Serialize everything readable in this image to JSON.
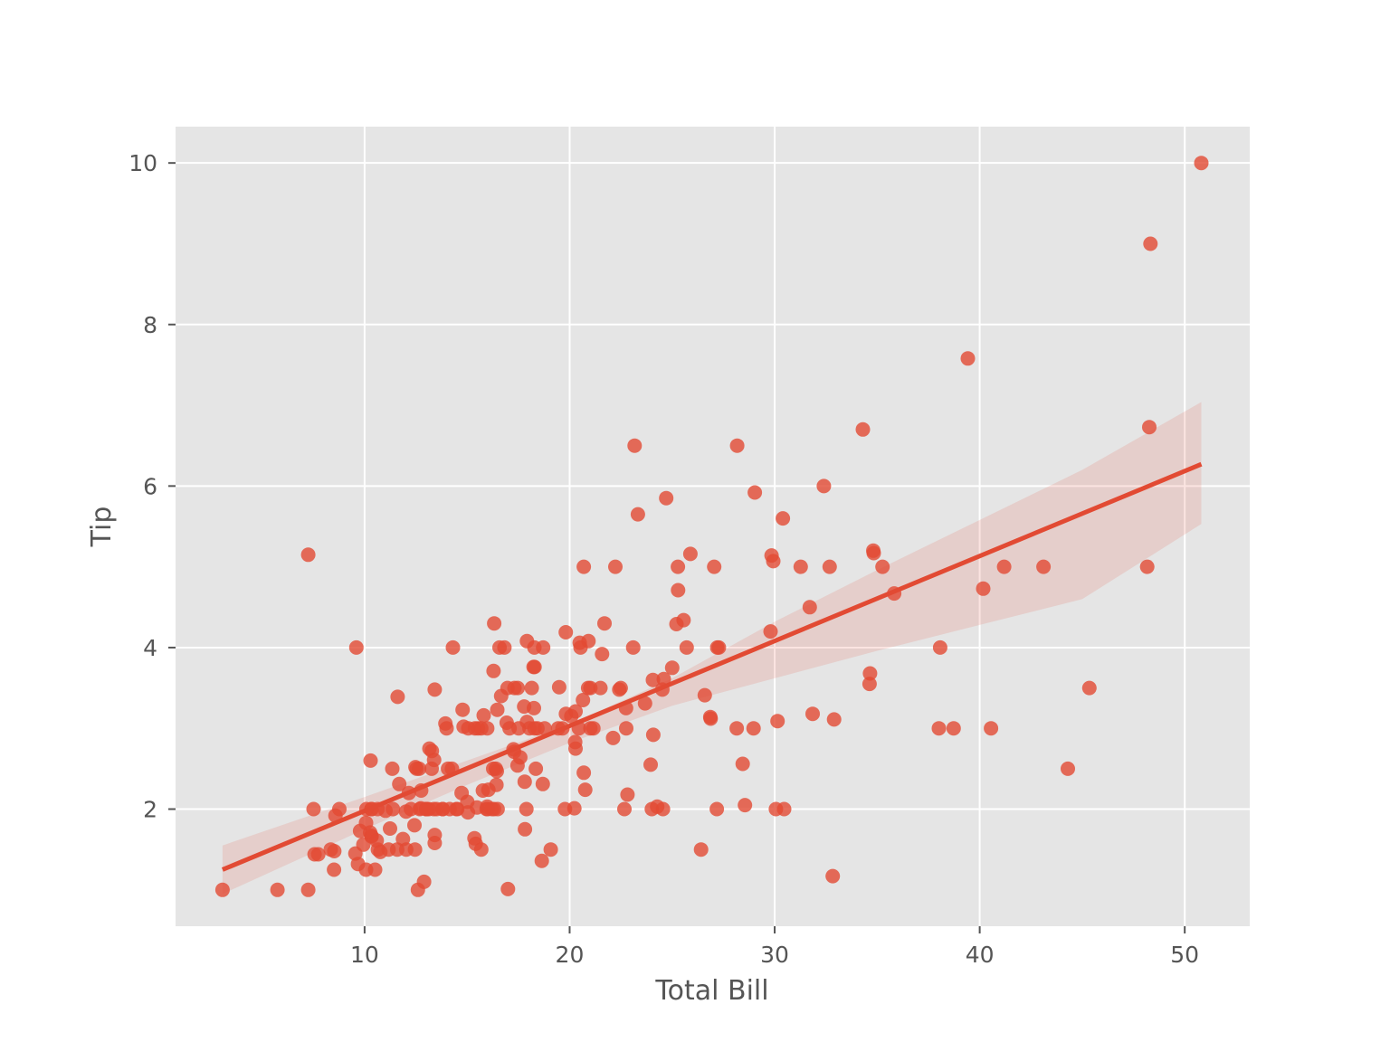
{
  "chart_data": {
    "type": "scatter",
    "title": "",
    "xlabel": "Total Bill",
    "ylabel": "Tip",
    "xlim": [
      0.78,
      53.17
    ],
    "ylim": [
      0.55,
      10.45
    ],
    "xticks": [
      10,
      20,
      30,
      40,
      50
    ],
    "yticks": [
      2,
      4,
      6,
      8,
      10
    ],
    "grid": true,
    "legend": "none",
    "colors": {
      "background": "#E5E5E5",
      "grid": "#FFFFFF",
      "marker": "#E24A33",
      "band": "#E24A33"
    },
    "series": [
      {
        "type": "scatter",
        "x": [
          16.99,
          10.34,
          21.01,
          23.68,
          24.59,
          25.29,
          8.77,
          26.88,
          15.04,
          14.78,
          10.27,
          35.26,
          15.42,
          18.43,
          14.83,
          21.58,
          10.33,
          16.29,
          16.97,
          20.65,
          17.92,
          20.29,
          15.77,
          39.42,
          19.82,
          17.81,
          13.37,
          12.69,
          21.7,
          19.65,
          9.55,
          18.35,
          15.06,
          20.69,
          17.78,
          24.06,
          16.31,
          16.93,
          18.69,
          31.27,
          16.04,
          17.46,
          13.94,
          9.68,
          30.4,
          18.29,
          22.23,
          32.4,
          28.55,
          18.04,
          12.54,
          10.29,
          34.81,
          9.94,
          25.56,
          19.49,
          38.01,
          26.41,
          11.24,
          48.27,
          20.29,
          13.81,
          11.02,
          18.29,
          17.59,
          20.08,
          16.45,
          3.07,
          20.23,
          15.01,
          12.02,
          17.07,
          26.86,
          25.28,
          14.73,
          10.51,
          17.92,
          27.2,
          22.76,
          17.29,
          19.44,
          16.66,
          10.07,
          32.68,
          15.98,
          34.83,
          13.03,
          18.28,
          24.71,
          21.16,
          28.97,
          22.49,
          5.75,
          16.32,
          22.75,
          40.17,
          27.28,
          12.03,
          21.01,
          12.46,
          11.35,
          15.38,
          44.3,
          22.42,
          20.92,
          15.36,
          20.49,
          25.21,
          18.24,
          14.31,
          14.0,
          7.25,
          38.07,
          23.95,
          25.71,
          17.31,
          29.93,
          10.65,
          12.43,
          24.08,
          11.69,
          13.42,
          14.26,
          15.95,
          12.48,
          29.8,
          8.52,
          14.52,
          11.38,
          22.82,
          19.08,
          20.27,
          11.17,
          12.26,
          18.26,
          8.51,
          10.33,
          14.15,
          16.0,
          13.16,
          17.47,
          34.3,
          41.19,
          27.05,
          16.43,
          8.35,
          18.64,
          11.87,
          9.78,
          7.51,
          14.07,
          13.13,
          17.26,
          24.55,
          19.77,
          29.85,
          48.17,
          25.0,
          13.39,
          16.49,
          21.5,
          12.66,
          16.21,
          13.81,
          17.51,
          24.52,
          20.76,
          31.71,
          10.59,
          10.63,
          50.81,
          15.81,
          7.25,
          31.85,
          16.82,
          32.9,
          17.89,
          14.48,
          9.6,
          34.63,
          34.65,
          23.33,
          45.35,
          23.17,
          40.55,
          20.69,
          20.9,
          30.46,
          18.15,
          23.1,
          15.69,
          19.81,
          28.44,
          15.48,
          16.58,
          7.56,
          10.34,
          43.11,
          13.0,
          13.51,
          18.71,
          12.74,
          13.0,
          16.4,
          20.53,
          16.47,
          26.59,
          38.73,
          24.27,
          12.76,
          30.06,
          25.89,
          48.33,
          13.27,
          28.17,
          12.9,
          28.15,
          11.59,
          7.74,
          30.14,
          12.16,
          13.42,
          8.58,
          15.98,
          13.42,
          16.27,
          10.09,
          20.45,
          13.28,
          22.12,
          24.01,
          15.69,
          11.61,
          10.77,
          15.53,
          10.07,
          12.6,
          32.83,
          35.83,
          29.03,
          27.18,
          22.67,
          17.82,
          18.78
        ],
        "y": [
          1.01,
          1.66,
          3.5,
          3.31,
          3.61,
          4.71,
          2.0,
          3.12,
          1.96,
          3.23,
          1.71,
          5.0,
          1.57,
          3.0,
          3.02,
          3.92,
          1.67,
          3.71,
          3.5,
          3.35,
          4.08,
          2.75,
          2.23,
          7.58,
          3.18,
          2.34,
          2.0,
          2.0,
          4.3,
          3.0,
          1.45,
          2.5,
          3.0,
          2.45,
          3.27,
          3.6,
          2.0,
          3.07,
          2.31,
          5.0,
          2.24,
          2.54,
          3.06,
          1.32,
          5.6,
          3.0,
          5.0,
          6.0,
          2.05,
          3.0,
          2.5,
          2.6,
          5.2,
          1.56,
          4.34,
          3.51,
          3.0,
          1.5,
          1.76,
          6.73,
          3.21,
          2.0,
          1.98,
          3.76,
          2.64,
          3.15,
          2.47,
          1.0,
          2.01,
          2.09,
          1.97,
          3.0,
          3.14,
          5.0,
          2.2,
          1.25,
          3.08,
          4.0,
          3.0,
          2.71,
          3.0,
          3.4,
          1.83,
          5.0,
          2.03,
          5.17,
          2.0,
          4.0,
          5.85,
          3.0,
          3.0,
          3.5,
          1.0,
          4.3,
          3.25,
          4.73,
          4.0,
          1.5,
          3.0,
          1.5,
          2.5,
          3.0,
          2.5,
          3.48,
          4.08,
          1.64,
          4.06,
          4.29,
          3.76,
          4.0,
          3.0,
          1.0,
          4.0,
          2.55,
          4.0,
          3.5,
          5.07,
          1.5,
          1.8,
          2.92,
          2.31,
          1.68,
          2.5,
          2.0,
          2.52,
          4.2,
          1.48,
          2.0,
          2.0,
          2.18,
          1.5,
          2.83,
          1.5,
          2.0,
          3.25,
          1.25,
          2.0,
          2.0,
          2.0,
          2.75,
          3.5,
          6.7,
          5.0,
          5.0,
          2.3,
          1.5,
          1.36,
          1.63,
          1.73,
          2.0,
          2.5,
          2.0,
          2.74,
          2.0,
          2.0,
          5.14,
          5.0,
          3.75,
          2.61,
          2.0,
          3.5,
          2.5,
          2.0,
          2.0,
          3.0,
          3.48,
          2.24,
          4.5,
          1.61,
          2.0,
          10.0,
          3.16,
          5.15,
          3.18,
          4.0,
          3.11,
          2.0,
          2.0,
          4.0,
          3.55,
          3.68,
          5.65,
          3.5,
          6.5,
          3.0,
          5.0,
          3.5,
          2.0,
          3.5,
          4.0,
          1.5,
          4.19,
          2.56,
          2.02,
          4.0,
          1.44,
          2.0,
          5.0,
          2.0,
          2.0,
          4.0,
          2.01,
          2.0,
          2.5,
          4.0,
          3.23,
          3.41,
          3.0,
          2.03,
          2.23,
          2.0,
          5.16,
          9.0,
          2.5,
          6.5,
          1.1,
          3.0,
          1.5,
          1.44,
          3.09,
          2.2,
          3.48,
          1.92,
          3.0,
          1.58,
          2.5,
          2.0,
          3.0,
          2.72,
          2.88,
          2.0,
          3.0,
          3.39,
          1.47,
          3.0,
          1.25,
          1.0,
          1.17,
          4.67,
          5.92,
          2.0,
          2.0,
          1.75,
          3.0
        ]
      },
      {
        "type": "regression_line",
        "x": [
          3.07,
          50.81
        ],
        "y": [
          1.25,
          6.27
        ]
      },
      {
        "type": "confidence_band",
        "x": [
          3.07,
          10,
          15,
          20,
          25,
          30,
          35,
          40,
          45,
          50.81
        ],
        "upper": [
          1.55,
          2.15,
          2.6,
          3.05,
          3.62,
          4.32,
          4.96,
          5.58,
          6.2,
          7.04
        ],
        "lower": [
          0.95,
          1.75,
          2.3,
          2.82,
          3.28,
          3.62,
          3.96,
          4.28,
          4.6,
          5.53
        ]
      }
    ]
  }
}
